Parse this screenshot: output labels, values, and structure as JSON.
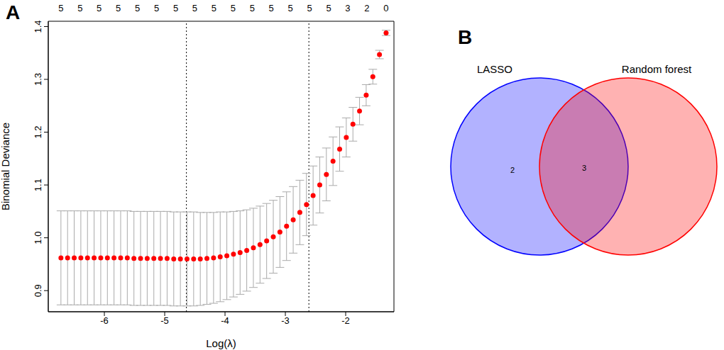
{
  "chart_data": [
    {
      "type": "scatter",
      "panel": "A",
      "x_label": "Log(λ)",
      "y_label": "Binomial Deviance",
      "xlim": [
        -6.93,
        -1.2
      ],
      "xticks": [
        -6,
        -5,
        -4,
        -3,
        -2
      ],
      "ylim": [
        0.86,
        1.41
      ],
      "yticks": [
        0.9,
        {
          "value": 1,
          "label": "1.0"
        },
        1.1,
        1.2,
        1.3,
        1.4
      ],
      "color": "#ff0000",
      "marker": "circle",
      "x": [
        -6.72,
        -6.61,
        -6.5,
        -6.39,
        -6.28,
        -6.17,
        -6.06,
        -5.95,
        -5.84,
        -5.73,
        -5.62,
        -5.51,
        -5.4,
        -5.29,
        -5.18,
        -5.07,
        -4.96,
        -4.85,
        -4.74,
        -4.63,
        -4.52,
        -4.41,
        -4.3,
        -4.19,
        -4.08,
        -3.97,
        -3.86,
        -3.75,
        -3.64,
        -3.53,
        -3.42,
        -3.31,
        -3.2,
        -3.09,
        -2.98,
        -2.87,
        -2.76,
        -2.65,
        -2.54,
        -2.43,
        -2.32,
        -2.21,
        -2.1,
        -1.99,
        -1.88,
        -1.77,
        -1.66,
        -1.55,
        -1.44,
        -1.33
      ],
      "values": [
        0.962,
        0.962,
        0.962,
        0.962,
        0.962,
        0.962,
        0.962,
        0.962,
        0.962,
        0.962,
        0.962,
        0.961,
        0.961,
        0.961,
        0.961,
        0.961,
        0.961,
        0.96,
        0.96,
        0.96,
        0.96,
        0.96,
        0.961,
        0.962,
        0.964,
        0.966,
        0.969,
        0.972,
        0.976,
        0.981,
        0.987,
        0.994,
        1.002,
        1.011,
        1.022,
        1.034,
        1.048,
        1.063,
        1.08,
        1.1,
        1.12,
        1.145,
        1.168,
        1.19,
        1.215,
        1.24,
        1.27,
        1.305,
        1.347,
        1.388
      ],
      "errors": [
        0.089,
        0.089,
        0.089,
        0.089,
        0.089,
        0.089,
        0.089,
        0.089,
        0.089,
        0.089,
        0.089,
        0.089,
        0.089,
        0.089,
        0.089,
        0.089,
        0.089,
        0.089,
        0.089,
        0.089,
        0.089,
        0.088,
        0.087,
        0.086,
        0.085,
        0.083,
        0.081,
        0.079,
        0.077,
        0.075,
        0.073,
        0.071,
        0.069,
        0.067,
        0.065,
        0.063,
        0.061,
        0.059,
        0.056,
        0.053,
        0.05,
        0.046,
        0.042,
        0.037,
        0.032,
        0.026,
        0.02,
        0.014,
        0.008,
        0.005
      ],
      "error_color": "#aaaaaa",
      "vlines": [
        -4.64,
        -2.61
      ],
      "top_labels": [
        {
          "value": -6.72,
          "label": "5"
        },
        {
          "value": -6.403,
          "label": "5"
        },
        {
          "value": -6.086,
          "label": "5"
        },
        {
          "value": -5.769,
          "label": "5"
        },
        {
          "value": -5.452,
          "label": "5"
        },
        {
          "value": -5.135,
          "label": "5"
        },
        {
          "value": -4.818,
          "label": "5"
        },
        {
          "value": -4.501,
          "label": "5"
        },
        {
          "value": -4.184,
          "label": "5"
        },
        {
          "value": -3.867,
          "label": "5"
        },
        {
          "value": -3.55,
          "label": "5"
        },
        {
          "value": -3.233,
          "label": "5"
        },
        {
          "value": -2.916,
          "label": "5"
        },
        {
          "value": -2.599,
          "label": "5"
        },
        {
          "value": -2.282,
          "label": "5"
        },
        {
          "value": -1.965,
          "label": "3"
        },
        {
          "value": -1.648,
          "label": "2"
        },
        {
          "value": -1.331,
          "label": "0"
        }
      ]
    },
    {
      "type": "venn",
      "panel": "B",
      "sets": [
        "LASSO",
        "Random forest"
      ],
      "colors": [
        "#0000ff",
        "#ff0000"
      ],
      "regions": [
        {
          "sets": [
            "LASSO"
          ],
          "value": 2
        },
        {
          "sets": [
            "LASSO",
            "Random forest"
          ],
          "value": 3
        }
      ]
    }
  ]
}
